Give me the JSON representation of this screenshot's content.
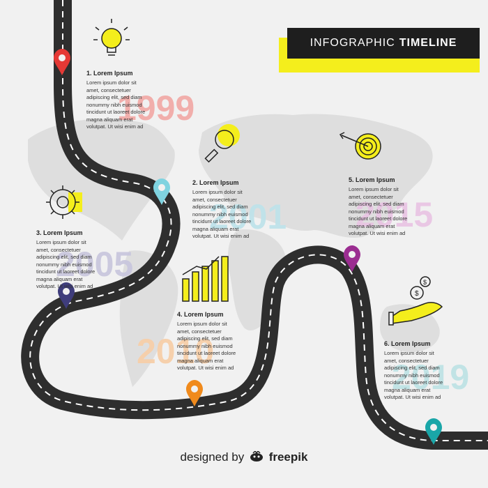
{
  "header": {
    "title_prefix": "INFOGRAPHIC",
    "title_bold": "TIMELINE"
  },
  "steps": [
    {
      "title": "1. Lorem Ipsum",
      "year": "1999",
      "text": "Lorem ipsum dolor sit\namet, consectetuer\nadipiscing elit, sed diam\nnonummy nibh euismod\ntincidunt ut laoreet dolore\nmagna aliquam erat\nvolutpat. Ut wisi enim ad",
      "icon": "lightbulb-icon",
      "pin_color": "#e53935"
    },
    {
      "title": "2. Lorem Ipsum",
      "year": "2001",
      "text": "Lorem ipsum dolor sit\namet, consectetuer\nadipiscing elit, sed diam\nnonummy nibh euismod\ntincidunt ut laoreet dolore\nmagna aliquam erat\nvolutpat. Ut wisi enim ad",
      "icon": "magnifier-icon",
      "pin_color": "#7fd3e0"
    },
    {
      "title": "3. Lorem Ipsum",
      "year": "2005",
      "text": "Lorem ipsum dolor sit\namet, consectetuer\nadipiscing elit, sed diam\nnonummy nibh euismod\ntincidunt ut laoreet dolore\nmagna aliquam erat\nvolutpat. Ut wisi enim ad",
      "icon": "gear-icon",
      "pin_color": "#3f3d7c"
    },
    {
      "title": "4. Lorem Ipsum",
      "year": "2010",
      "text": "Lorem ipsum dolor sit\namet, consectetuer\nadipiscing elit, sed diam\nnonummy nibh euismod\ntincidunt ut laoreet dolore\nmagna aliquam erat\nvolutpat. Ut wisi enim ad",
      "icon": "bar-chart-icon",
      "pin_color": "#f08a1c"
    },
    {
      "title": "5. Lorem Ipsum",
      "year": "2015",
      "text": "Lorem ipsum dolor sit\namet, consectetuer\nadipiscing elit, sed diam\nnonummy nibh euismod\ntincidunt ut laoreet dolore\nmagna aliquam erat\nvolutpat. Ut wisi enim ad",
      "icon": "target-icon",
      "pin_color": "#9b2d91"
    },
    {
      "title": "6. Lorem Ipsum",
      "year": "2019",
      "text": "Lorem ipsum dolor sit\namet, consectetuer\nadipiscing elit, sed diam\nnonummy nibh euismod\ntincidunt ut laoreet dolore\nmagna aliquam erat\nvolutpat. Ut wisi enim ad",
      "icon": "money-hand-icon",
      "pin_color": "#1aa6a8"
    }
  ],
  "footer": {
    "prefix": "designed by",
    "brand": "freepik"
  },
  "colors": {
    "road": "#2e2e2e",
    "road_line": "#ffffff",
    "accent": "#f4ee1c",
    "map": "#dedede",
    "year_1": "#f2a7a4",
    "year_2": "#bfe3ea",
    "year_3": "#c7c5dd",
    "year_4": "#f7cfa9",
    "year_5": "#e9c3e3",
    "year_6": "#bfe3e5"
  }
}
